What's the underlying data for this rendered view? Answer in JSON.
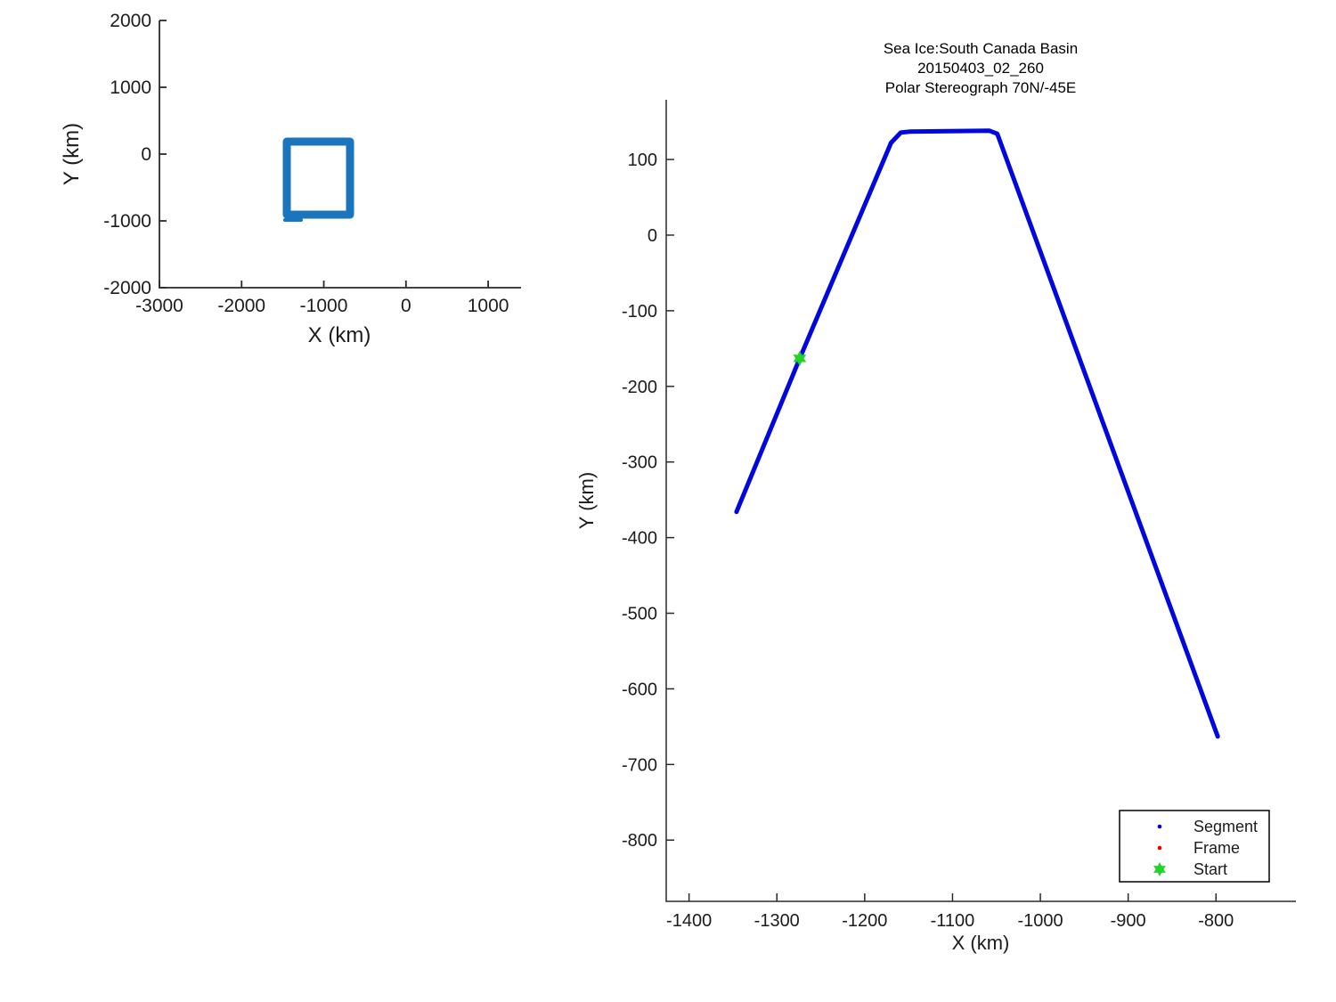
{
  "figure": {
    "background": "#ffffff",
    "text_color": "#1c1c1c",
    "axis_color": "#2a2a2a"
  },
  "chart_data": [
    {
      "id": "overview-map",
      "type": "line",
      "title": "",
      "xlabel": "X (km)",
      "ylabel": "Y (km)",
      "xlim": [
        -3000,
        1400
      ],
      "ylim": [
        -2000,
        2000
      ],
      "xticks": [
        -3000,
        -2000,
        -1000,
        0,
        1000
      ],
      "yticks": [
        -2000,
        -1000,
        0,
        1000,
        2000
      ],
      "grid": false,
      "legend": null,
      "series": [
        {
          "name": "coverage-box",
          "color": "#1b75bc",
          "linewidth": 9,
          "points": [
            [
              -1450,
              187
            ],
            [
              -681,
              187
            ],
            [
              -681,
              -907
            ],
            [
              -1450,
              -907
            ],
            [
              -1450,
              187
            ]
          ]
        },
        {
          "name": "coverage-box-tail",
          "color": "#1b75bc",
          "linewidth": 4,
          "points": [
            [
              -1472,
              -987
            ],
            [
              -1277,
              -987
            ]
          ]
        }
      ],
      "markers": []
    },
    {
      "id": "trajectory-plot",
      "type": "line",
      "title_lines": [
        "Sea Ice:South Canada Basin",
        "20150403_02_260",
        "Polar Stereograph 70N/-45E"
      ],
      "xlabel": "X (km)",
      "ylabel": "Y (km)",
      "xlim": [
        -1426,
        -709
      ],
      "ylim": [
        -881,
        179
      ],
      "xticks": [
        -1400,
        -1300,
        -1200,
        -1100,
        -1000,
        -900,
        -800
      ],
      "yticks": [
        100,
        0,
        -100,
        -200,
        -300,
        -400,
        -500,
        -600,
        -700,
        -800
      ],
      "grid": false,
      "series": [
        {
          "name": "segment-track",
          "color": "#0008dd",
          "linewidth": 5,
          "points": [
            [
              -1346,
              -366
            ],
            [
              -1274,
              -163
            ],
            [
              -1170,
              122
            ],
            [
              -1159,
              135.5
            ],
            [
              -1148,
              137
            ],
            [
              -1058,
              138
            ],
            [
              -1049,
              134
            ],
            [
              -798,
              -663
            ]
          ]
        }
      ],
      "markers": [
        {
          "name": "start-marker",
          "shape": "hexagram",
          "color": "#22d42a",
          "x": -1274,
          "y": -163,
          "size": 8.5
        }
      ],
      "legend": {
        "position": "lower-right",
        "entries": [
          {
            "label": "Segment",
            "marker": "dot",
            "color": "#0000dd"
          },
          {
            "label": "Frame",
            "marker": "dot",
            "color": "#ee0000"
          },
          {
            "label": "Start",
            "marker": "hexagram",
            "color": "#22d42a"
          }
        ]
      }
    }
  ]
}
